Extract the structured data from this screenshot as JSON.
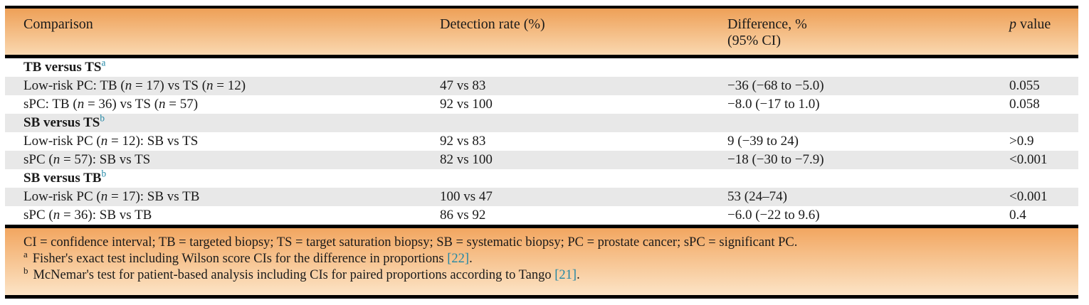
{
  "table": {
    "header": {
      "columns": [
        "Comparison",
        "Detection rate (%)",
        "Difference, %\n(95% CI)",
        "_p_ value"
      ]
    },
    "rows": [
      {
        "type": "group",
        "label": "TB versus TS",
        "marker": "a"
      },
      {
        "type": "data",
        "comparison": "Low-risk PC: TB (_n_ = 17) vs TS (_n_ = 12)",
        "detection_rate": "47 vs 83",
        "difference": "−36 (−68 to −5.0)",
        "p_value": "0.055"
      },
      {
        "type": "data",
        "comparison": "sPC: TB (_n_ = 36) vs TS (_n_ = 57)",
        "detection_rate": "92 vs 100",
        "difference": "−8.0 (−17 to 1.0)",
        "p_value": "0.058"
      },
      {
        "type": "group",
        "label": "SB versus TS",
        "marker": "b"
      },
      {
        "type": "data",
        "comparison": "Low-risk PC (_n_ = 12): SB vs TS",
        "detection_rate": "92 vs 83",
        "difference": "9 (−39 to 24)",
        "p_value": ">0.9"
      },
      {
        "type": "data",
        "comparison": "sPC (_n_ = 57): SB vs TS",
        "detection_rate": "82 vs 100",
        "difference": "−18 (−30 to −7.9)",
        "p_value": "<0.001"
      },
      {
        "type": "group",
        "label": "SB versus TB",
        "marker": "b"
      },
      {
        "type": "data",
        "comparison": "Low-risk PC (_n_ = 17): SB vs TB",
        "detection_rate": "100 vs 47",
        "difference": "53 (24–74)",
        "p_value": "<0.001"
      },
      {
        "type": "data",
        "comparison": "sPC (_n_ = 36): SB vs TB",
        "detection_rate": "86 vs 92",
        "difference": "−6.0 (−22 to 9.6)",
        "p_value": "0.4"
      }
    ],
    "footer": {
      "abbreviations": "CI = confidence interval; TB = targeted biopsy; TS = target saturation biopsy; SB = systematic biopsy; PC = prostate cancer; sPC = significant PC.",
      "footnotes": [
        {
          "marker": "a",
          "text": "Fisher's exact test including Wilson score CIs for the difference in proportions ",
          "citation": "[22]",
          "suffix": "."
        },
        {
          "marker": "b",
          "text": "McNemar's test for patient-based analysis including CIs for paired proportions according to Tango ",
          "citation": "[21]",
          "suffix": "."
        }
      ]
    },
    "colors": {
      "header_gradient_top": "#eea057",
      "header_gradient_bottom": "#fad8b0",
      "footer_gradient_top": "#f2a660",
      "footer_gradient_bottom": "#fce4c6",
      "stripe": "#e8e8e8",
      "accent_teal": "#2187a5",
      "border": "#000000"
    }
  }
}
